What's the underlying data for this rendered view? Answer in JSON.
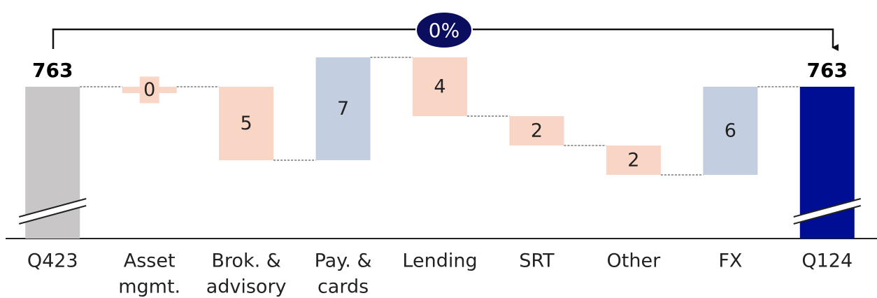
{
  "chart_data": {
    "type": "waterfall",
    "categories": [
      [
        "Q423"
      ],
      [
        "Asset",
        "mgmt."
      ],
      [
        "Brok. &",
        "advisory"
      ],
      [
        "Pay. &",
        "cards"
      ],
      [
        "Lending"
      ],
      [
        "SRT"
      ],
      [
        "Other"
      ],
      [
        "FX"
      ],
      [
        "Q124"
      ]
    ],
    "values": [
      763,
      0,
      -5,
      7,
      -4,
      -2,
      -2,
      6,
      763
    ],
    "value_labels": [
      "763",
      "0",
      "5",
      "7",
      "4",
      "2",
      "2",
      "6",
      "763"
    ],
    "colors": {
      "start": "#c8c6c6",
      "increase": "#c3cfe0",
      "decrease": "#f9d5c5",
      "end": "#000e94"
    },
    "annotation": "0%",
    "annotation_color": "#0b0e5e"
  }
}
